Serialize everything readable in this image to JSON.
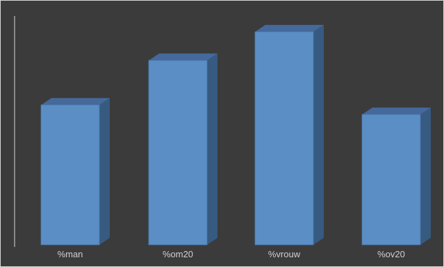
{
  "chart_data": {
    "type": "bar",
    "style": "3d-column",
    "categories": [
      "%man",
      "%om20",
      "%vrouw",
      "%ov20"
    ],
    "values": [
      44,
      58,
      67,
      41
    ],
    "ylim": [
      0,
      72
    ],
    "title": "",
    "xlabel": "",
    "ylabel": "",
    "grid": false,
    "legend": "none",
    "colors": {
      "background": "#3b3b3b",
      "bar_front": "#5b8ec5",
      "bar_side": "#375a80",
      "bar_top": "#45699b",
      "axis": "#d9d9d9",
      "tick_label": "#d0d0d0"
    }
  }
}
